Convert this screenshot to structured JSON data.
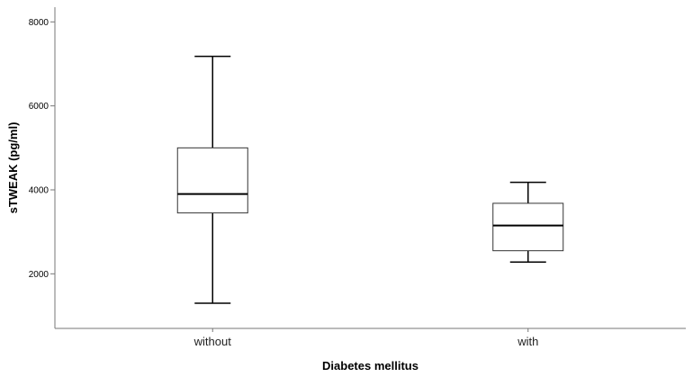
{
  "chart_data": {
    "type": "boxplot",
    "xlabel": "Diabetes mellitus",
    "ylabel": "sTWEAK (pg/ml)",
    "ylim": [
      700,
      8350
    ],
    "yticks": [
      2000,
      4000,
      6000,
      8000
    ],
    "categories": [
      "without",
      "with"
    ],
    "boxes": [
      {
        "category": "without",
        "min": 1300,
        "q1": 3450,
        "median": 3900,
        "q3": 5000,
        "max": 7180
      },
      {
        "category": "with",
        "min": 2280,
        "q1": 2550,
        "median": 3150,
        "q3": 3680,
        "max": 4180
      }
    ],
    "grid": false,
    "colors": {
      "box_fill": "#ffffff",
      "line": "#000000",
      "axis": "#777777"
    }
  }
}
